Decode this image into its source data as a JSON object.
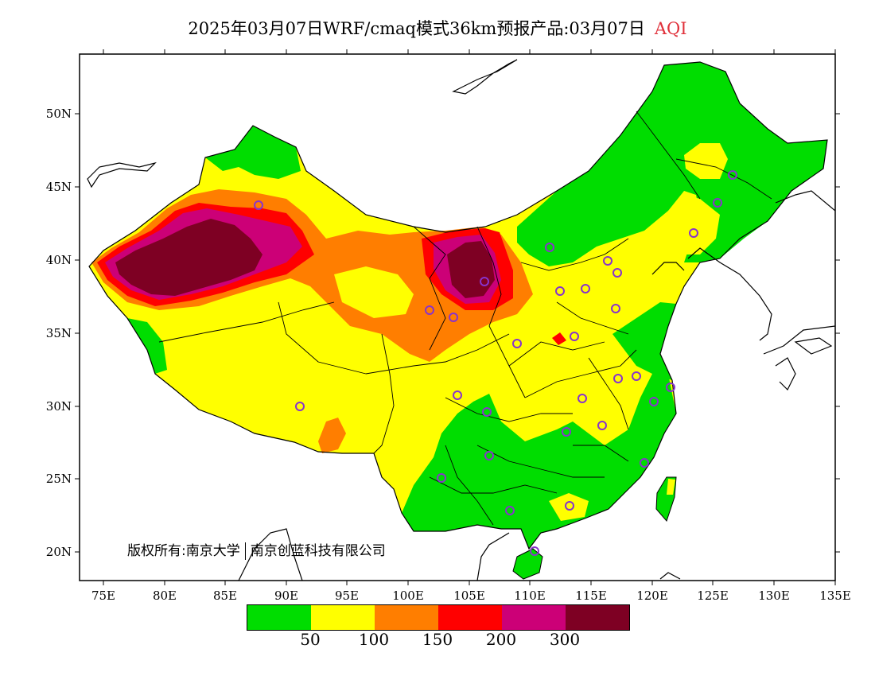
{
  "title": {
    "main": "2025年03月07日WRF/cmaq模式36km预报产品:03月07日",
    "variable": "AQI",
    "variable_color": "#e0303a"
  },
  "axes": {
    "x_ticks": [
      "75E",
      "80E",
      "85E",
      "90E",
      "95E",
      "100E",
      "105E",
      "110E",
      "115E",
      "120E",
      "125E",
      "130E",
      "135E"
    ],
    "y_ticks": [
      "20N",
      "25N",
      "30N",
      "35N",
      "40N",
      "45N",
      "50N"
    ]
  },
  "copyright": {
    "owner": "版权所有:南京大学",
    "partner": "南京创蓝科技有限公司"
  },
  "legend": {
    "colors": [
      "#00dd00",
      "#ffff00",
      "#ff7e00",
      "#ff0000",
      "#cc0077",
      "#7e0023"
    ],
    "labels": [
      "50",
      "100",
      "150",
      "200",
      "300"
    ]
  },
  "colors": {
    "good": "#00dd00",
    "moderate": "#ffff00",
    "sensitive": "#ff7e00",
    "unhealthy": "#ff0000",
    "very_unhealthy": "#cc0077",
    "hazardous": "#7e0023",
    "station_marker": "#8833cc"
  }
}
